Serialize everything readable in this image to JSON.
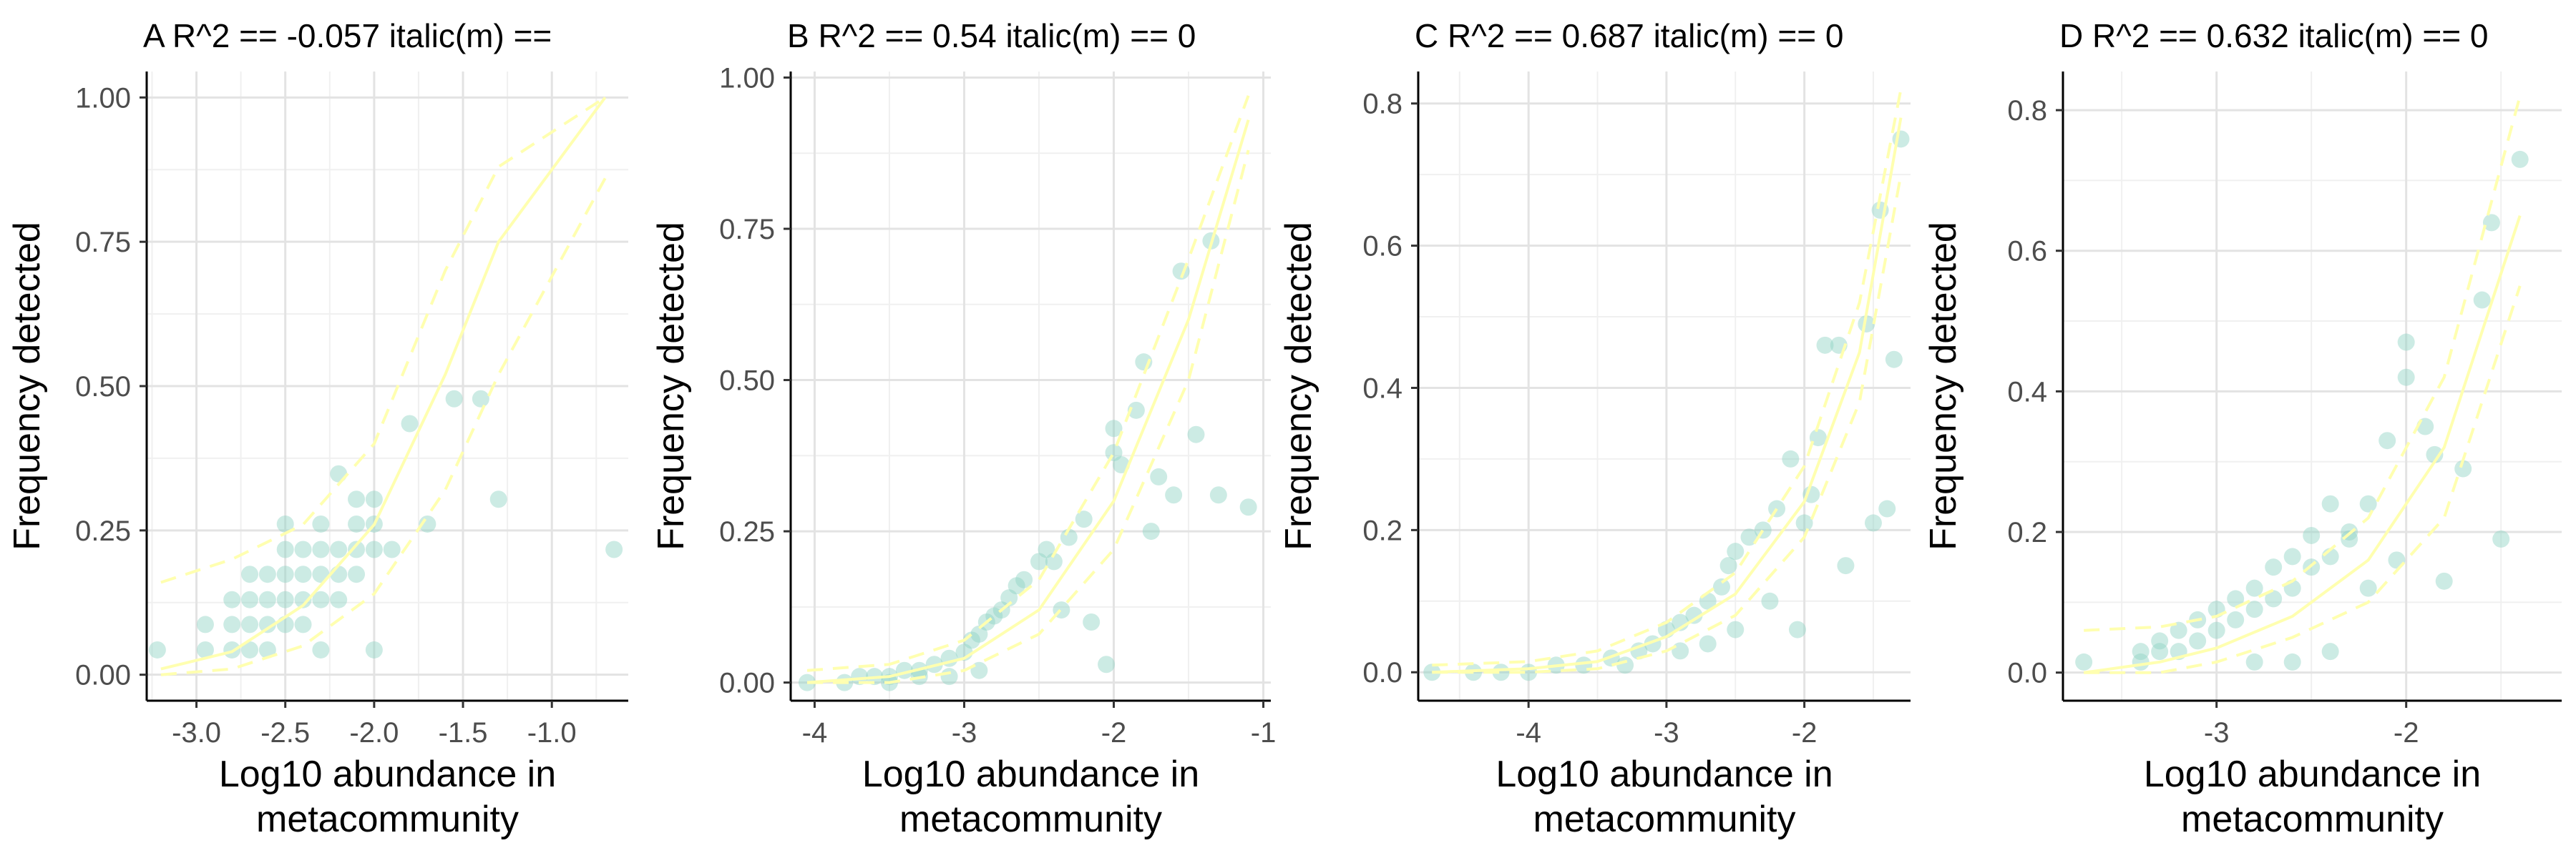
{
  "chart_data": [
    {
      "type": "scatter",
      "panel": "A",
      "title": "A R^2 ==  -0.057 italic(m) ==",
      "xlabel": [
        "Log10 abundance in",
        "metacommunity"
      ],
      "ylabel": "Frequency detected",
      "xlim": [
        -3.28,
        -0.57
      ],
      "ylim": [
        -0.045,
        1.045
      ],
      "xticks": [
        -3.0,
        -2.5,
        -2.0,
        -1.5,
        -1.0
      ],
      "xtick_labels": [
        "-3.0",
        "-2.5",
        "-2.0",
        "-1.5",
        "-1.0"
      ],
      "yticks": [
        0.0,
        0.25,
        0.5,
        0.75,
        1.0
      ],
      "ytick_labels": [
        "0.00",
        "0.25",
        "0.50",
        "0.75",
        "1.00"
      ],
      "grid": true,
      "point_color": "#8fd2c4",
      "fit_color": "#ffffb0",
      "points": [
        [
          -3.22,
          0.043
        ],
        [
          -2.95,
          0.043
        ],
        [
          -2.95,
          0.087
        ],
        [
          -2.8,
          0.043
        ],
        [
          -2.8,
          0.087
        ],
        [
          -2.8,
          0.13
        ],
        [
          -2.7,
          0.043
        ],
        [
          -2.7,
          0.087
        ],
        [
          -2.7,
          0.13
        ],
        [
          -2.7,
          0.174
        ],
        [
          -2.6,
          0.043
        ],
        [
          -2.6,
          0.087
        ],
        [
          -2.6,
          0.13
        ],
        [
          -2.6,
          0.174
        ],
        [
          -2.5,
          0.087
        ],
        [
          -2.5,
          0.13
        ],
        [
          -2.5,
          0.174
        ],
        [
          -2.5,
          0.217
        ],
        [
          -2.5,
          0.261
        ],
        [
          -2.4,
          0.087
        ],
        [
          -2.4,
          0.13
        ],
        [
          -2.4,
          0.174
        ],
        [
          -2.4,
          0.217
        ],
        [
          -2.3,
          0.043
        ],
        [
          -2.3,
          0.13
        ],
        [
          -2.3,
          0.174
        ],
        [
          -2.3,
          0.217
        ],
        [
          -2.3,
          0.261
        ],
        [
          -2.2,
          0.13
        ],
        [
          -2.2,
          0.174
        ],
        [
          -2.2,
          0.217
        ],
        [
          -2.2,
          0.348
        ],
        [
          -2.1,
          0.174
        ],
        [
          -2.1,
          0.217
        ],
        [
          -2.1,
          0.261
        ],
        [
          -2.1,
          0.304
        ],
        [
          -2.0,
          0.217
        ],
        [
          -2.0,
          0.261
        ],
        [
          -2.0,
          0.304
        ],
        [
          -2.0,
          0.043
        ],
        [
          -1.9,
          0.217
        ],
        [
          -1.8,
          0.435
        ],
        [
          -1.7,
          0.261
        ],
        [
          -1.55,
          0.478
        ],
        [
          -1.4,
          0.478
        ],
        [
          -1.3,
          0.304
        ],
        [
          -0.65,
          0.217
        ]
      ],
      "fit": [
        [
          -3.2,
          0.01
        ],
        [
          -2.8,
          0.04
        ],
        [
          -2.4,
          0.12
        ],
        [
          -2.0,
          0.26
        ],
        [
          -1.6,
          0.52
        ],
        [
          -1.3,
          0.75
        ],
        [
          -0.7,
          1.0
        ]
      ],
      "fit_lower": [
        [
          -3.2,
          0.0
        ],
        [
          -2.8,
          0.01
        ],
        [
          -2.4,
          0.05
        ],
        [
          -2.0,
          0.14
        ],
        [
          -1.6,
          0.32
        ],
        [
          -1.3,
          0.52
        ],
        [
          -0.7,
          0.86
        ]
      ],
      "fit_upper": [
        [
          -3.2,
          0.16
        ],
        [
          -2.8,
          0.2
        ],
        [
          -2.4,
          0.26
        ],
        [
          -2.0,
          0.4
        ],
        [
          -1.6,
          0.7
        ],
        [
          -1.3,
          0.88
        ],
        [
          -0.7,
          1.0
        ]
      ]
    },
    {
      "type": "scatter",
      "panel": "B",
      "title": "B R^2 ==  0.54 italic(m) == 0",
      "xlabel": [
        "Log10 abundance in",
        "metacommunity"
      ],
      "ylabel": "Frequency detected",
      "xlim": [
        -4.16,
        -0.95
      ],
      "ylim": [
        -0.03,
        1.01
      ],
      "xticks": [
        -4,
        -3,
        -2,
        -1
      ],
      "xtick_labels": [
        "-4",
        "-3",
        "-2",
        "-1"
      ],
      "yticks": [
        0.0,
        0.25,
        0.5,
        0.75,
        1.0
      ],
      "ytick_labels": [
        "0.00",
        "0.25",
        "0.50",
        "0.75",
        "1.00"
      ],
      "grid": true,
      "point_color": "#8fd2c4",
      "fit_color": "#ffffb0",
      "points": [
        [
          -4.05,
          0.0
        ],
        [
          -3.8,
          0.0
        ],
        [
          -3.7,
          0.01
        ],
        [
          -3.6,
          0.01
        ],
        [
          -3.5,
          0.01
        ],
        [
          -3.4,
          0.02
        ],
        [
          -3.3,
          0.02
        ],
        [
          -3.2,
          0.03
        ],
        [
          -3.1,
          0.04
        ],
        [
          -3.0,
          0.05
        ],
        [
          -2.95,
          0.07
        ],
        [
          -2.9,
          0.08
        ],
        [
          -2.85,
          0.1
        ],
        [
          -2.8,
          0.11
        ],
        [
          -2.75,
          0.12
        ],
        [
          -2.7,
          0.14
        ],
        [
          -2.65,
          0.16
        ],
        [
          -2.6,
          0.17
        ],
        [
          -2.5,
          0.2
        ],
        [
          -2.45,
          0.22
        ],
        [
          -2.4,
          0.2
        ],
        [
          -2.35,
          0.12
        ],
        [
          -2.3,
          0.24
        ],
        [
          -2.2,
          0.27
        ],
        [
          -2.15,
          0.1
        ],
        [
          -2.05,
          0.03
        ],
        [
          -2.0,
          0.38
        ],
        [
          -2.0,
          0.42
        ],
        [
          -1.95,
          0.36
        ],
        [
          -1.85,
          0.45
        ],
        [
          -1.8,
          0.53
        ],
        [
          -1.75,
          0.25
        ],
        [
          -1.7,
          0.34
        ],
        [
          -1.6,
          0.31
        ],
        [
          -1.55,
          0.68
        ],
        [
          -1.45,
          0.41
        ],
        [
          -1.35,
          0.73
        ],
        [
          -1.3,
          0.31
        ],
        [
          -1.1,
          0.29
        ],
        [
          -3.5,
          0.0
        ],
        [
          -3.3,
          0.01
        ],
        [
          -3.1,
          0.01
        ],
        [
          -2.9,
          0.02
        ]
      ],
      "fit": [
        [
          -4.05,
          0.0
        ],
        [
          -3.5,
          0.01
        ],
        [
          -3.0,
          0.04
        ],
        [
          -2.5,
          0.12
        ],
        [
          -2.0,
          0.3
        ],
        [
          -1.5,
          0.6
        ],
        [
          -1.1,
          0.93
        ]
      ],
      "fit_lower": [
        [
          -4.05,
          0.0
        ],
        [
          -3.5,
          0.0
        ],
        [
          -3.0,
          0.02
        ],
        [
          -2.5,
          0.08
        ],
        [
          -2.0,
          0.22
        ],
        [
          -1.5,
          0.5
        ],
        [
          -1.1,
          0.88
        ]
      ],
      "fit_upper": [
        [
          -4.05,
          0.02
        ],
        [
          -3.5,
          0.03
        ],
        [
          -3.0,
          0.07
        ],
        [
          -2.5,
          0.17
        ],
        [
          -2.0,
          0.38
        ],
        [
          -1.5,
          0.7
        ],
        [
          -1.1,
          0.97
        ]
      ]
    },
    {
      "type": "scatter",
      "panel": "C",
      "title": "C R^2 ==  0.687 italic(m) == 0",
      "xlabel": [
        "Log10 abundance in",
        "metacommunity"
      ],
      "ylabel": "Frequency detected",
      "xlim": [
        -4.8,
        -1.23
      ],
      "ylim": [
        -0.04,
        0.845
      ],
      "xticks": [
        -4,
        -3,
        -2
      ],
      "xtick_labels": [
        "-4",
        "-3",
        "-2"
      ],
      "yticks": [
        0.0,
        0.2,
        0.4,
        0.6,
        0.8
      ],
      "ytick_labels": [
        "0.0",
        "0.2",
        "0.4",
        "0.6",
        "0.8"
      ],
      "grid": true,
      "point_color": "#8fd2c4",
      "fit_color": "#ffffb0",
      "points": [
        [
          -4.7,
          0.0
        ],
        [
          -4.4,
          0.0
        ],
        [
          -4.2,
          0.0
        ],
        [
          -4.0,
          0.0
        ],
        [
          -3.8,
          0.01
        ],
        [
          -3.6,
          0.01
        ],
        [
          -3.4,
          0.02
        ],
        [
          -3.2,
          0.03
        ],
        [
          -3.1,
          0.04
        ],
        [
          -3.0,
          0.06
        ],
        [
          -2.9,
          0.07
        ],
        [
          -2.8,
          0.08
        ],
        [
          -2.7,
          0.1
        ],
        [
          -2.6,
          0.12
        ],
        [
          -2.55,
          0.15
        ],
        [
          -2.5,
          0.17
        ],
        [
          -2.4,
          0.19
        ],
        [
          -2.3,
          0.2
        ],
        [
          -2.25,
          0.1
        ],
        [
          -2.2,
          0.23
        ],
        [
          -2.1,
          0.3
        ],
        [
          -2.05,
          0.06
        ],
        [
          -2.0,
          0.21
        ],
        [
          -1.95,
          0.25
        ],
        [
          -1.9,
          0.33
        ],
        [
          -1.85,
          0.46
        ],
        [
          -1.75,
          0.46
        ],
        [
          -1.7,
          0.15
        ],
        [
          -1.55,
          0.49
        ],
        [
          -1.5,
          0.21
        ],
        [
          -1.45,
          0.65
        ],
        [
          -1.4,
          0.23
        ],
        [
          -1.35,
          0.44
        ],
        [
          -1.3,
          0.75
        ],
        [
          -2.9,
          0.03
        ],
        [
          -2.7,
          0.04
        ],
        [
          -2.5,
          0.06
        ],
        [
          -3.3,
          0.01
        ]
      ],
      "fit": [
        [
          -4.7,
          0.0
        ],
        [
          -4.0,
          0.005
        ],
        [
          -3.5,
          0.015
        ],
        [
          -3.0,
          0.05
        ],
        [
          -2.5,
          0.11
        ],
        [
          -2.0,
          0.24
        ],
        [
          -1.6,
          0.45
        ],
        [
          -1.3,
          0.78
        ]
      ],
      "fit_lower": [
        [
          -4.7,
          0.0
        ],
        [
          -4.0,
          0.0
        ],
        [
          -3.5,
          0.005
        ],
        [
          -3.0,
          0.03
        ],
        [
          -2.5,
          0.08
        ],
        [
          -2.0,
          0.19
        ],
        [
          -1.6,
          0.38
        ],
        [
          -1.3,
          0.7
        ]
      ],
      "fit_upper": [
        [
          -4.7,
          0.01
        ],
        [
          -4.0,
          0.015
        ],
        [
          -3.5,
          0.03
        ],
        [
          -3.0,
          0.07
        ],
        [
          -2.5,
          0.14
        ],
        [
          -2.0,
          0.29
        ],
        [
          -1.6,
          0.52
        ],
        [
          -1.3,
          0.82
        ]
      ]
    },
    {
      "type": "scatter",
      "panel": "D",
      "title": "D R^2 ==  0.632 italic(m) == 0",
      "xlabel": [
        "Log10 abundance in",
        "metacommunity"
      ],
      "ylabel": "Frequency detected",
      "xlim": [
        -3.81,
        -1.18
      ],
      "ylim": [
        -0.04,
        0.855
      ],
      "xticks": [
        -3,
        -2
      ],
      "xtick_labels": [
        "-3",
        "-2"
      ],
      "yticks": [
        0.0,
        0.2,
        0.4,
        0.6,
        0.8
      ],
      "ytick_labels": [
        "0.0",
        "0.2",
        "0.4",
        "0.6",
        "0.8"
      ],
      "grid": true,
      "point_color": "#8fd2c4",
      "fit_color": "#ffffb0",
      "points": [
        [
          -3.7,
          0.015
        ],
        [
          -3.4,
          0.015
        ],
        [
          -3.4,
          0.03
        ],
        [
          -3.3,
          0.03
        ],
        [
          -3.3,
          0.045
        ],
        [
          -3.2,
          0.03
        ],
        [
          -3.2,
          0.06
        ],
        [
          -3.1,
          0.045
        ],
        [
          -3.1,
          0.075
        ],
        [
          -3.0,
          0.06
        ],
        [
          -3.0,
          0.09
        ],
        [
          -2.9,
          0.075
        ],
        [
          -2.9,
          0.105
        ],
        [
          -2.8,
          0.09
        ],
        [
          -2.8,
          0.12
        ],
        [
          -2.7,
          0.105
        ],
        [
          -2.7,
          0.15
        ],
        [
          -2.6,
          0.12
        ],
        [
          -2.6,
          0.165
        ],
        [
          -2.5,
          0.15
        ],
        [
          -2.5,
          0.195
        ],
        [
          -2.4,
          0.165
        ],
        [
          -2.4,
          0.24
        ],
        [
          -2.3,
          0.19
        ],
        [
          -2.3,
          0.2
        ],
        [
          -2.2,
          0.24
        ],
        [
          -2.2,
          0.12
        ],
        [
          -2.1,
          0.33
        ],
        [
          -2.05,
          0.16
        ],
        [
          -2.0,
          0.42
        ],
        [
          -2.0,
          0.47
        ],
        [
          -1.9,
          0.35
        ],
        [
          -1.85,
          0.31
        ],
        [
          -1.8,
          0.13
        ],
        [
          -1.7,
          0.29
        ],
        [
          -1.6,
          0.53
        ],
        [
          -1.55,
          0.64
        ],
        [
          -1.5,
          0.19
        ],
        [
          -1.4,
          0.73
        ],
        [
          -2.6,
          0.015
        ],
        [
          -2.8,
          0.015
        ],
        [
          -2.4,
          0.03
        ]
      ],
      "fit": [
        [
          -3.7,
          0.0
        ],
        [
          -3.3,
          0.015
        ],
        [
          -3.0,
          0.035
        ],
        [
          -2.6,
          0.08
        ],
        [
          -2.2,
          0.16
        ],
        [
          -1.8,
          0.32
        ],
        [
          -1.4,
          0.65
        ]
      ],
      "fit_lower": [
        [
          -3.7,
          0.0
        ],
        [
          -3.3,
          0.0
        ],
        [
          -3.0,
          0.015
        ],
        [
          -2.6,
          0.05
        ],
        [
          -2.2,
          0.1
        ],
        [
          -1.8,
          0.22
        ],
        [
          -1.4,
          0.55
        ]
      ],
      "fit_upper": [
        [
          -3.7,
          0.06
        ],
        [
          -3.3,
          0.065
        ],
        [
          -3.0,
          0.08
        ],
        [
          -2.6,
          0.13
        ],
        [
          -2.2,
          0.22
        ],
        [
          -1.8,
          0.42
        ],
        [
          -1.4,
          0.82
        ]
      ]
    }
  ]
}
